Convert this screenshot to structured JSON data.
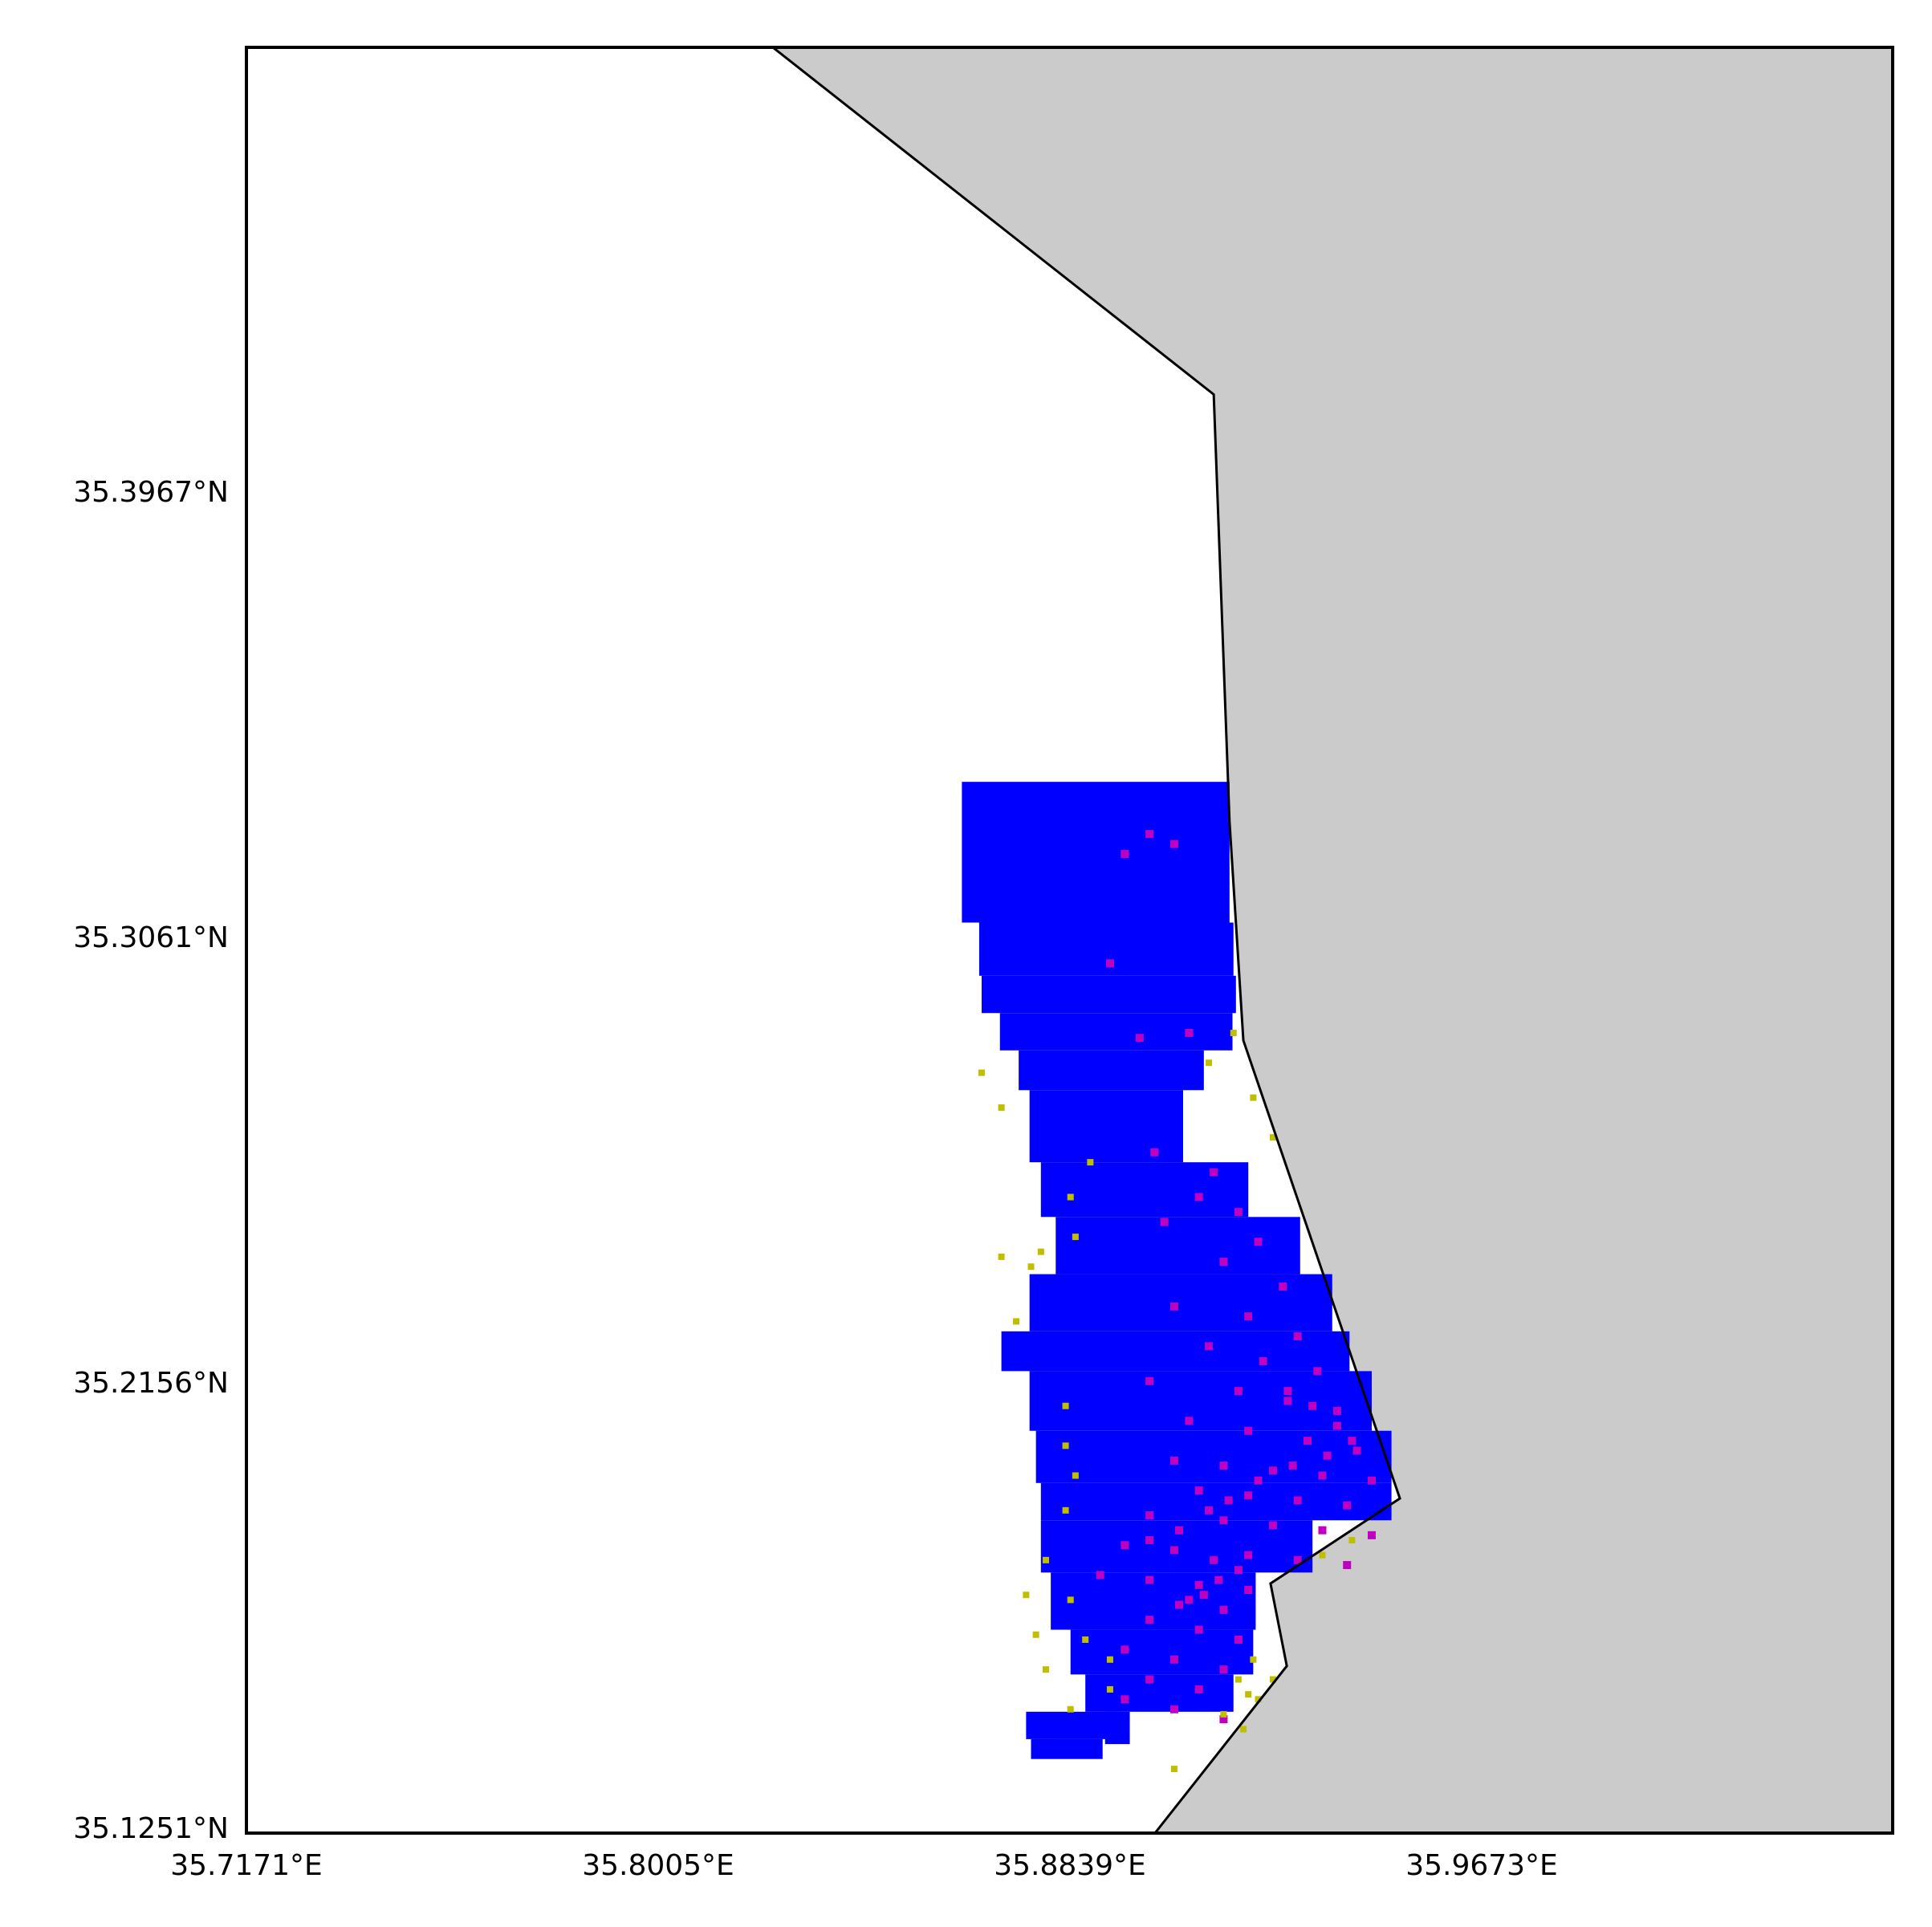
{
  "map": {
    "type": "map",
    "extent": {
      "lon_min": 35.7171,
      "lon_max": 36.0505,
      "lat_min": 35.1251,
      "lat_max": 35.4842
    },
    "x_ticks": [
      {
        "value": 35.7171,
        "label": "35.7171°E"
      },
      {
        "value": 35.8005,
        "label": "35.8005°E"
      },
      {
        "value": 35.8839,
        "label": "35.8839°E"
      },
      {
        "value": 35.9673,
        "label": "35.9673°E"
      }
    ],
    "y_ticks": [
      {
        "value": 35.3967,
        "label": "35.3967°N"
      },
      {
        "value": 35.3061,
        "label": "35.3061°N"
      },
      {
        "value": 35.2156,
        "label": "35.2156°N"
      },
      {
        "value": 35.1251,
        "label": "35.1251°N"
      }
    ],
    "colors": {
      "sea": "#ffffff",
      "land": "#cbcbcb",
      "coastline": "#000000",
      "frame": "#000000",
      "primary_cells": "#0000ff",
      "overlap_cells": "#c000c0",
      "outlier_points": "#bfbf00"
    },
    "land_boundary": [
      [
        35.8237,
        35.4842
      ],
      [
        35.913,
        35.4144
      ],
      [
        35.9162,
        35.3285
      ],
      [
        35.919,
        35.2845
      ],
      [
        35.9507,
        35.1924
      ],
      [
        35.9245,
        35.1753
      ],
      [
        35.9278,
        35.1587
      ],
      [
        35.9011,
        35.1251
      ]
    ],
    "primary_cells": [
      [
        35.862,
        35.3365,
        35.9162,
        35.3153
      ],
      [
        35.862,
        35.3153,
        35.9162,
        35.3082
      ],
      [
        35.8655,
        35.3082,
        35.917,
        35.2975
      ],
      [
        35.866,
        35.2975,
        35.9175,
        35.29
      ],
      [
        35.8697,
        35.29,
        35.9168,
        35.2825
      ],
      [
        35.8735,
        35.2825,
        35.911,
        35.2745
      ],
      [
        35.8757,
        35.2745,
        35.9068,
        35.26
      ],
      [
        35.878,
        35.26,
        35.92,
        35.249
      ],
      [
        35.881,
        35.249,
        35.9305,
        35.2375
      ],
      [
        35.8757,
        35.2375,
        35.937,
        35.226
      ],
      [
        35.87,
        35.226,
        35.9405,
        35.218
      ],
      [
        35.8757,
        35.218,
        35.945,
        35.206
      ],
      [
        35.877,
        35.206,
        35.949,
        35.1955
      ],
      [
        35.878,
        35.1955,
        35.949,
        35.188
      ],
      [
        35.878,
        35.188,
        35.933,
        35.1775
      ],
      [
        35.88,
        35.1775,
        35.9215,
        35.166
      ],
      [
        35.884,
        35.166,
        35.921,
        35.157
      ],
      [
        35.887,
        35.157,
        35.917,
        35.1495
      ],
      [
        35.875,
        35.1495,
        35.894,
        35.144
      ],
      [
        35.876,
        35.144,
        35.8905,
        35.14
      ],
      [
        35.891,
        35.1495,
        35.896,
        35.143
      ]
    ],
    "overlap_points": [
      [
        35.9,
        35.326
      ],
      [
        35.905,
        35.324
      ],
      [
        35.895,
        35.322
      ],
      [
        35.892,
        35.3
      ],
      [
        35.908,
        35.286
      ],
      [
        35.898,
        35.285
      ],
      [
        35.901,
        35.262
      ],
      [
        35.913,
        35.258
      ],
      [
        35.91,
        35.253
      ],
      [
        35.918,
        35.25
      ],
      [
        35.903,
        35.248
      ],
      [
        35.922,
        35.244
      ],
      [
        35.915,
        35.24
      ],
      [
        35.927,
        35.235
      ],
      [
        35.905,
        35.231
      ],
      [
        35.92,
        35.229
      ],
      [
        35.93,
        35.225
      ],
      [
        35.912,
        35.223
      ],
      [
        35.923,
        35.22
      ],
      [
        35.934,
        35.218
      ],
      [
        35.9,
        35.216
      ],
      [
        35.918,
        35.214
      ],
      [
        35.928,
        35.212
      ],
      [
        35.938,
        35.21
      ],
      [
        35.908,
        35.208
      ],
      [
        35.92,
        35.206
      ],
      [
        35.932,
        35.204
      ],
      [
        35.942,
        35.202
      ],
      [
        35.905,
        35.2
      ],
      [
        35.915,
        35.199
      ],
      [
        35.925,
        35.198
      ],
      [
        35.935,
        35.197
      ],
      [
        35.945,
        35.196
      ],
      [
        35.91,
        35.194
      ],
      [
        35.92,
        35.193
      ],
      [
        35.93,
        35.192
      ],
      [
        35.94,
        35.191
      ],
      [
        35.9,
        35.189
      ],
      [
        35.915,
        35.188
      ],
      [
        35.925,
        35.187
      ],
      [
        35.935,
        35.186
      ],
      [
        35.945,
        35.185
      ],
      [
        35.895,
        35.183
      ],
      [
        35.905,
        35.182
      ],
      [
        35.92,
        35.181
      ],
      [
        35.93,
        35.18
      ],
      [
        35.94,
        35.179
      ],
      [
        35.89,
        35.177
      ],
      [
        35.9,
        35.176
      ],
      [
        35.91,
        35.175
      ],
      [
        35.92,
        35.174
      ],
      [
        35.908,
        35.172
      ],
      [
        35.915,
        35.17
      ],
      [
        35.9,
        35.168
      ],
      [
        35.91,
        35.166
      ],
      [
        35.918,
        35.164
      ],
      [
        35.895,
        35.162
      ],
      [
        35.905,
        35.16
      ],
      [
        35.915,
        35.158
      ],
      [
        35.9,
        35.156
      ],
      [
        35.91,
        35.154
      ],
      [
        35.895,
        35.152
      ],
      [
        35.905,
        35.15
      ],
      [
        35.915,
        35.148
      ],
      [
        35.928,
        35.214
      ],
      [
        35.933,
        35.211
      ],
      [
        35.938,
        35.207
      ],
      [
        35.941,
        35.204
      ],
      [
        35.936,
        35.201
      ],
      [
        35.929,
        35.199
      ],
      [
        35.922,
        35.196
      ],
      [
        35.916,
        35.192
      ],
      [
        35.912,
        35.19
      ],
      [
        35.906,
        35.186
      ],
      [
        35.9,
        35.184
      ],
      [
        35.913,
        35.18
      ],
      [
        35.918,
        35.178
      ],
      [
        35.914,
        35.176
      ],
      [
        35.911,
        35.173
      ],
      [
        35.906,
        35.171
      ]
    ],
    "outlier_points": [
      [
        35.866,
        35.278
      ],
      [
        35.87,
        35.271
      ],
      [
        35.888,
        35.26
      ],
      [
        35.884,
        35.253
      ],
      [
        35.912,
        35.28
      ],
      [
        35.917,
        35.286
      ],
      [
        35.921,
        35.273
      ],
      [
        35.925,
        35.265
      ],
      [
        35.87,
        35.241
      ],
      [
        35.876,
        35.239
      ],
      [
        35.878,
        35.242
      ],
      [
        35.885,
        35.245
      ],
      [
        35.873,
        35.228
      ],
      [
        35.883,
        35.211
      ],
      [
        35.883,
        35.203
      ],
      [
        35.885,
        35.197
      ],
      [
        35.883,
        35.19
      ],
      [
        35.879,
        35.18
      ],
      [
        35.875,
        35.173
      ],
      [
        35.884,
        35.172
      ],
      [
        35.877,
        35.165
      ],
      [
        35.887,
        35.164
      ],
      [
        35.892,
        35.16
      ],
      [
        35.879,
        35.158
      ],
      [
        35.884,
        35.15
      ],
      [
        35.892,
        35.154
      ],
      [
        35.918,
        35.156
      ],
      [
        35.92,
        35.153
      ],
      [
        35.922,
        35.152
      ],
      [
        35.925,
        35.156
      ],
      [
        35.921,
        35.16
      ],
      [
        35.915,
        35.149
      ],
      [
        35.919,
        35.146
      ],
      [
        35.905,
        35.138
      ],
      [
        35.941,
        35.184
      ],
      [
        35.935,
        35.181
      ]
    ]
  }
}
